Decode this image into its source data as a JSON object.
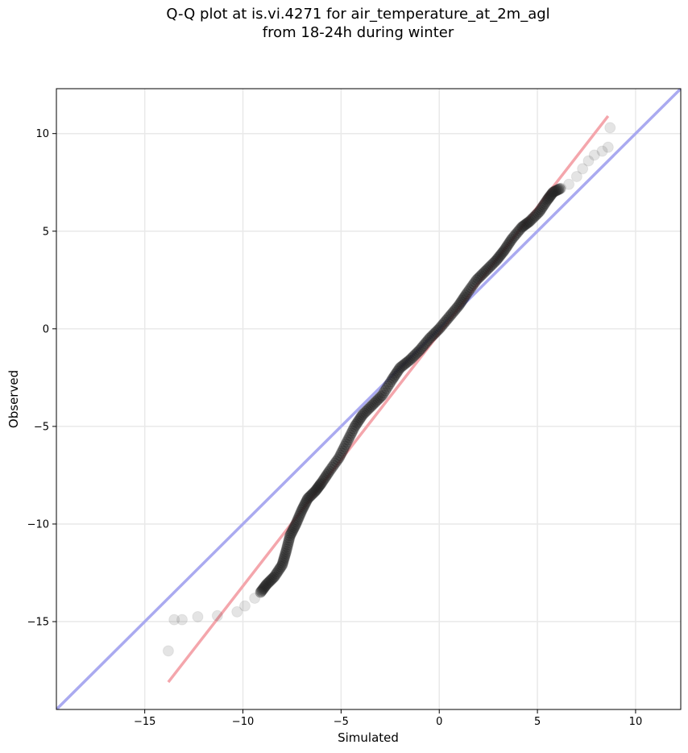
{
  "chart_data": {
    "type": "scatter",
    "title": "Q-Q plot at is.vi.4271 for air_temperature_at_2m_agl",
    "subtitle": "from 18-24h during winter",
    "xlabel": "Simulated",
    "ylabel": "Observed",
    "xlim": [
      -19.5,
      12.3
    ],
    "ylim": [
      -19.5,
      12.3
    ],
    "xticks": [
      -15,
      -10,
      -5,
      0,
      5,
      10
    ],
    "yticks": [
      -15,
      -10,
      -5,
      0,
      5,
      10
    ],
    "xtick_labels": [
      "−15",
      "−10",
      "−5",
      "0",
      "5",
      "10"
    ],
    "ytick_labels": [
      "−15",
      "−10",
      "−5",
      "0",
      "5",
      "10"
    ],
    "grid": true,
    "quantile_curve": [
      [
        -13.8,
        -16.5
      ],
      [
        -13.5,
        -14.9
      ],
      [
        -13.1,
        -14.9
      ],
      [
        -12.3,
        -14.75
      ],
      [
        -11.3,
        -14.7
      ],
      [
        -10.3,
        -14.5
      ],
      [
        -9.9,
        -14.2
      ],
      [
        -9.4,
        -13.8
      ],
      [
        -9.1,
        -13.5
      ],
      [
        -8.8,
        -13.1
      ],
      [
        -8.4,
        -12.7
      ],
      [
        -8.0,
        -12.1
      ],
      [
        -7.8,
        -11.4
      ],
      [
        -7.6,
        -10.6
      ],
      [
        -7.3,
        -10.0
      ],
      [
        -7.0,
        -9.3
      ],
      [
        -6.7,
        -8.7
      ],
      [
        -6.3,
        -8.3
      ],
      [
        -6.0,
        -7.9
      ],
      [
        -5.6,
        -7.3
      ],
      [
        -5.1,
        -6.6
      ],
      [
        -4.7,
        -5.8
      ],
      [
        -4.3,
        -5.0
      ],
      [
        -3.9,
        -4.4
      ],
      [
        -3.4,
        -3.9
      ],
      [
        -2.9,
        -3.4
      ],
      [
        -2.4,
        -2.6
      ],
      [
        -2.0,
        -2.0
      ],
      [
        -1.5,
        -1.6
      ],
      [
        -1.0,
        -1.1
      ],
      [
        -0.5,
        -0.5
      ],
      [
        0.0,
        0.0
      ],
      [
        0.5,
        0.6
      ],
      [
        1.0,
        1.2
      ],
      [
        1.4,
        1.8
      ],
      [
        1.9,
        2.5
      ],
      [
        2.4,
        3.0
      ],
      [
        2.9,
        3.5
      ],
      [
        3.3,
        4.0
      ],
      [
        3.7,
        4.6
      ],
      [
        4.2,
        5.2
      ],
      [
        4.6,
        5.5
      ],
      [
        5.1,
        6.0
      ],
      [
        5.5,
        6.6
      ],
      [
        5.8,
        7.0
      ],
      [
        6.2,
        7.2
      ],
      [
        6.6,
        7.4
      ],
      [
        7.0,
        7.8
      ],
      [
        7.3,
        8.2
      ],
      [
        7.6,
        8.6
      ],
      [
        7.9,
        8.9
      ],
      [
        8.3,
        9.1
      ],
      [
        8.6,
        9.3
      ],
      [
        8.7,
        10.3
      ]
    ],
    "identity_line": {
      "color": "#aaaaf0"
    },
    "fit_line": {
      "from": [
        -13.8,
        -18.1
      ],
      "to": [
        8.6,
        10.9
      ],
      "color": "#f4a6ac"
    },
    "point_color": "#222222"
  }
}
